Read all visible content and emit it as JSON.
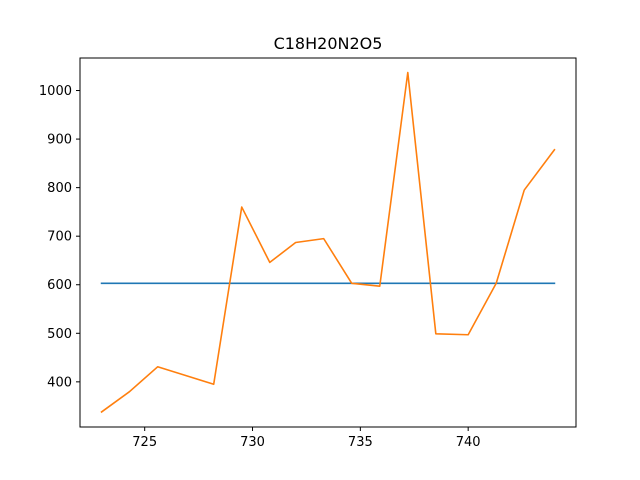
{
  "chart_data": {
    "type": "line",
    "title": "C18H20N2O5",
    "xlabel": "",
    "ylabel": "",
    "xlim": [
      722.0,
      745.0
    ],
    "ylim": [
      307,
      1067
    ],
    "xticks": [
      725,
      730,
      735,
      740
    ],
    "yticks": [
      400,
      500,
      600,
      700,
      800,
      900,
      1000
    ],
    "grid": false,
    "series": [
      {
        "color": "#1f77b4",
        "x": [
          723.0,
          744.0
        ],
        "y": [
          603,
          603
        ]
      },
      {
        "color": "#ff7f0e",
        "x": [
          723.0,
          724.3,
          725.6,
          726.9,
          728.2,
          729.5,
          730.8,
          732.0,
          733.3,
          734.6,
          735.9,
          737.2,
          738.5,
          740.0,
          741.3,
          742.6,
          744.0
        ],
        "y": [
          338,
          380,
          431,
          413,
          395,
          760,
          646,
          687,
          695,
          603,
          597,
          1037,
          499,
          497,
          603,
          795,
          878
        ]
      }
    ]
  }
}
